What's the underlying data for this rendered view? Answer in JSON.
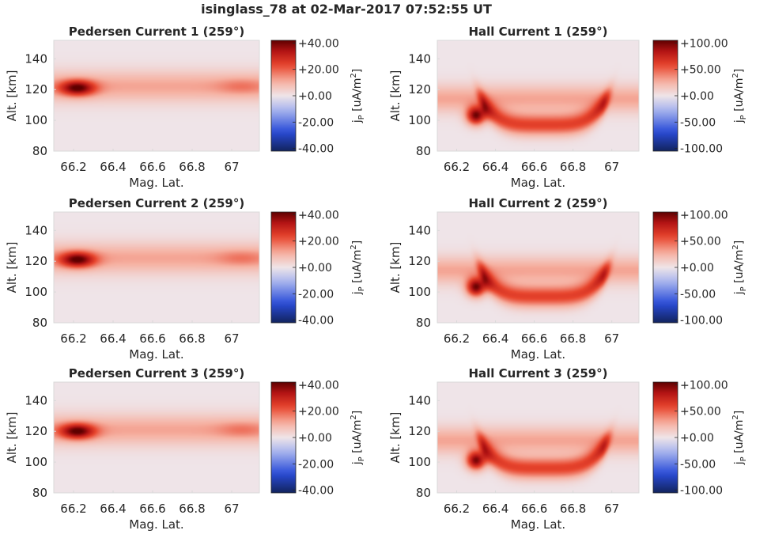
{
  "figure": {
    "title": "isinglass_78 at 02-Mar-2017 07:52:55 UT"
  },
  "colors": {
    "neg_extreme": "#12235e",
    "neg_strong": "#2a4cd8",
    "neg_light": "#aab6ee",
    "zero": "#efe4e8",
    "pos_light": "#f6b2a3",
    "pos_mid": "#e8452d",
    "pos_strong": "#b41414",
    "pos_extreme": "#5e0000"
  },
  "chart_data": [
    {
      "type": "heatmap",
      "title": "Pedersen Current 1 (259°)",
      "xlabel": "Mag. Lat.",
      "ylabel": "Alt. [km]",
      "xticks": [
        "66.2",
        "66.4",
        "66.6",
        "66.8",
        "67"
      ],
      "xtick_values": [
        66.2,
        66.4,
        66.6,
        66.8,
        67.0
      ],
      "xlim": [
        66.1,
        67.14
      ],
      "yticks": [
        "80",
        "100",
        "120",
        "140"
      ],
      "ytick_values": [
        80,
        100,
        120,
        140
      ],
      "ylim": [
        80,
        152
      ],
      "colorbar_label": "jP [uA/m2]",
      "colorbar_ticks": [
        "+40.00",
        "+20.00",
        "+0.00",
        "-20.00",
        "-40.00"
      ],
      "colorbar_tick_values": [
        40,
        20,
        0,
        -20,
        -40
      ],
      "clim": [
        -42,
        42
      ],
      "field": "pedersen",
      "features": [
        {
          "kind": "band",
          "center_alt": 122,
          "width_alt": 10,
          "value": 12
        },
        {
          "kind": "blob",
          "lat": 66.22,
          "alt": 121,
          "lat_width": 0.09,
          "alt_width": 5,
          "value": 32
        },
        {
          "kind": "blob",
          "lat": 67.05,
          "alt": 122,
          "lat_width": 0.12,
          "alt_width": 5,
          "value": 6
        }
      ]
    },
    {
      "type": "heatmap",
      "title": "Hall Current 1 (259°)",
      "xlabel": "Mag. Lat.",
      "ylabel": "Alt. [km]",
      "xticks": [
        "66.2",
        "66.4",
        "66.6",
        "66.8",
        "67"
      ],
      "xtick_values": [
        66.2,
        66.4,
        66.6,
        66.8,
        67.0
      ],
      "xlim": [
        66.1,
        67.14
      ],
      "yticks": [
        "80",
        "100",
        "120",
        "140"
      ],
      "ytick_values": [
        80,
        100,
        120,
        140
      ],
      "ylim": [
        80,
        152
      ],
      "colorbar_label": "jP [uA/m2]",
      "colorbar_ticks": [
        "+100.00",
        "+50.00",
        "+0.00",
        "-50.00",
        "-100.00"
      ],
      "colorbar_tick_values": [
        100,
        50,
        0,
        -50,
        -100
      ],
      "clim": [
        -105,
        105
      ],
      "field": "hall",
      "features": [
        {
          "kind": "band",
          "center_alt": 114,
          "width_alt": 9,
          "value": 30
        },
        {
          "kind": "trough",
          "lat_start": 66.35,
          "lat_end": 66.95,
          "alt": 97,
          "value": 60
        },
        {
          "kind": "blob",
          "lat": 66.3,
          "alt": 103,
          "lat_width": 0.05,
          "alt_width": 6,
          "value": 95
        }
      ]
    },
    {
      "type": "heatmap",
      "title": "Pedersen Current 2 (259°)",
      "xlabel": "Mag. Lat.",
      "ylabel": "Alt. [km]",
      "xticks": [
        "66.2",
        "66.4",
        "66.6",
        "66.8",
        "67"
      ],
      "xtick_values": [
        66.2,
        66.4,
        66.6,
        66.8,
        67.0
      ],
      "xlim": [
        66.1,
        67.14
      ],
      "yticks": [
        "80",
        "100",
        "120",
        "140"
      ],
      "ytick_values": [
        80,
        100,
        120,
        140
      ],
      "ylim": [
        80,
        152
      ],
      "colorbar_label": "jP [uA/m2]",
      "colorbar_ticks": [
        "+40.00",
        "+20.00",
        "+0.00",
        "-20.00",
        "-40.00"
      ],
      "colorbar_tick_values": [
        40,
        20,
        0,
        -20,
        -40
      ],
      "clim": [
        -42,
        42
      ],
      "field": "pedersen",
      "features": [
        {
          "kind": "band",
          "center_alt": 122,
          "width_alt": 10,
          "value": 12
        },
        {
          "kind": "blob",
          "lat": 66.22,
          "alt": 121,
          "lat_width": 0.09,
          "alt_width": 5,
          "value": 32
        },
        {
          "kind": "blob",
          "lat": 67.05,
          "alt": 122,
          "lat_width": 0.12,
          "alt_width": 5,
          "value": 6
        }
      ]
    },
    {
      "type": "heatmap",
      "title": "Hall Current 2 (259°)",
      "xlabel": "Mag. Lat.",
      "ylabel": "Alt. [km]",
      "xticks": [
        "66.2",
        "66.4",
        "66.6",
        "66.8",
        "67"
      ],
      "xtick_values": [
        66.2,
        66.4,
        66.6,
        66.8,
        67.0
      ],
      "xlim": [
        66.1,
        67.14
      ],
      "yticks": [
        "80",
        "100",
        "120",
        "140"
      ],
      "ytick_values": [
        80,
        100,
        120,
        140
      ],
      "ylim": [
        80,
        152
      ],
      "colorbar_label": "jP [uA/m2]",
      "colorbar_ticks": [
        "+100.00",
        "+50.00",
        "+0.00",
        "-50.00",
        "-100.00"
      ],
      "colorbar_tick_values": [
        100,
        50,
        0,
        -50,
        -100
      ],
      "clim": [
        -105,
        105
      ],
      "field": "hall",
      "features": [
        {
          "kind": "band",
          "center_alt": 114,
          "width_alt": 9,
          "value": 30
        },
        {
          "kind": "trough",
          "lat_start": 66.35,
          "lat_end": 66.95,
          "alt": 97,
          "value": 60
        },
        {
          "kind": "blob",
          "lat": 66.3,
          "alt": 103,
          "lat_width": 0.05,
          "alt_width": 6,
          "value": 95
        }
      ]
    },
    {
      "type": "heatmap",
      "title": "Pedersen Current 3 (259°)",
      "xlabel": "Mag. Lat.",
      "ylabel": "Alt. [km]",
      "xticks": [
        "66.2",
        "66.4",
        "66.6",
        "66.8",
        "67"
      ],
      "xtick_values": [
        66.2,
        66.4,
        66.6,
        66.8,
        67.0
      ],
      "xlim": [
        66.1,
        67.14
      ],
      "yticks": [
        "80",
        "100",
        "120",
        "140"
      ],
      "ytick_values": [
        80,
        100,
        120,
        140
      ],
      "ylim": [
        80,
        152
      ],
      "colorbar_label": "jP [uA/m2]",
      "colorbar_ticks": [
        "+40.00",
        "+20.00",
        "+0.00",
        "-20.00",
        "-40.00"
      ],
      "colorbar_tick_values": [
        40,
        20,
        0,
        -20,
        -40
      ],
      "clim": [
        -42,
        42
      ],
      "field": "pedersen",
      "features": [
        {
          "kind": "band",
          "center_alt": 121,
          "width_alt": 10,
          "value": 12
        },
        {
          "kind": "blob",
          "lat": 66.22,
          "alt": 120,
          "lat_width": 0.09,
          "alt_width": 5,
          "value": 32
        },
        {
          "kind": "blob",
          "lat": 67.05,
          "alt": 121,
          "lat_width": 0.12,
          "alt_width": 5,
          "value": 6
        }
      ]
    },
    {
      "type": "heatmap",
      "title": "Hall Current 3 (259°)",
      "xlabel": "Mag. Lat.",
      "ylabel": "Alt. [km]",
      "xticks": [
        "66.2",
        "66.4",
        "66.6",
        "66.8",
        "67"
      ],
      "xtick_values": [
        66.2,
        66.4,
        66.6,
        66.8,
        67.0
      ],
      "xlim": [
        66.1,
        67.14
      ],
      "yticks": [
        "80",
        "100",
        "120",
        "140"
      ],
      "ytick_values": [
        80,
        100,
        120,
        140
      ],
      "ylim": [
        80,
        152
      ],
      "colorbar_label": "jP [uA/m2]",
      "colorbar_ticks": [
        "+100.00",
        "+50.00",
        "+0.00",
        "-50.00",
        "-100.00"
      ],
      "colorbar_tick_values": [
        100,
        50,
        0,
        -50,
        -100
      ],
      "clim": [
        -105,
        105
      ],
      "field": "hall",
      "features": [
        {
          "kind": "band",
          "center_alt": 114,
          "width_alt": 9,
          "value": 30
        },
        {
          "kind": "trough",
          "lat_start": 66.35,
          "lat_end": 66.95,
          "alt": 96,
          "value": 60
        },
        {
          "kind": "blob",
          "lat": 66.3,
          "alt": 101,
          "lat_width": 0.05,
          "alt_width": 6,
          "value": 95
        }
      ]
    }
  ]
}
